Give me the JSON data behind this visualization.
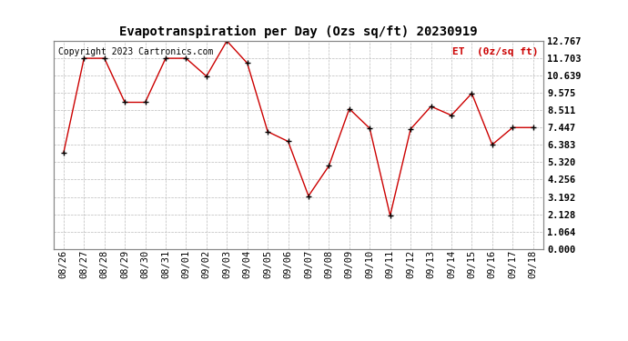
{
  "title": "Evapotranspiration per Day (Ozs sq/ft) 20230919",
  "copyright": "Copyright 2023 Cartronics.com",
  "legend_label": "ET  (0z/sq ft)",
  "x_labels": [
    "08/26",
    "08/27",
    "08/28",
    "08/29",
    "08/30",
    "08/31",
    "09/01",
    "09/02",
    "09/03",
    "09/04",
    "09/05",
    "09/06",
    "09/07",
    "09/08",
    "09/09",
    "09/10",
    "09/11",
    "09/12",
    "09/13",
    "09/14",
    "09/15",
    "09/16",
    "09/17",
    "09/18"
  ],
  "y_values": [
    5.9,
    11.7,
    11.7,
    9.0,
    9.0,
    11.7,
    11.7,
    10.6,
    12.767,
    11.4,
    7.2,
    6.6,
    3.25,
    5.1,
    8.6,
    7.4,
    2.05,
    7.35,
    8.75,
    8.2,
    9.55,
    6.4,
    7.45,
    7.45
  ],
  "line_color": "#cc0000",
  "marker_color": "#000000",
  "grid_color": "#bbbbbb",
  "bg_color": "#ffffff",
  "ylim": [
    0.0,
    12.767
  ],
  "ytick_values": [
    0.0,
    1.064,
    2.128,
    3.192,
    4.256,
    5.32,
    6.383,
    7.447,
    8.511,
    9.575,
    10.639,
    11.703,
    12.767
  ],
  "title_fontsize": 10,
  "copyright_fontsize": 7,
  "legend_fontsize": 8,
  "tick_fontsize": 7.5
}
